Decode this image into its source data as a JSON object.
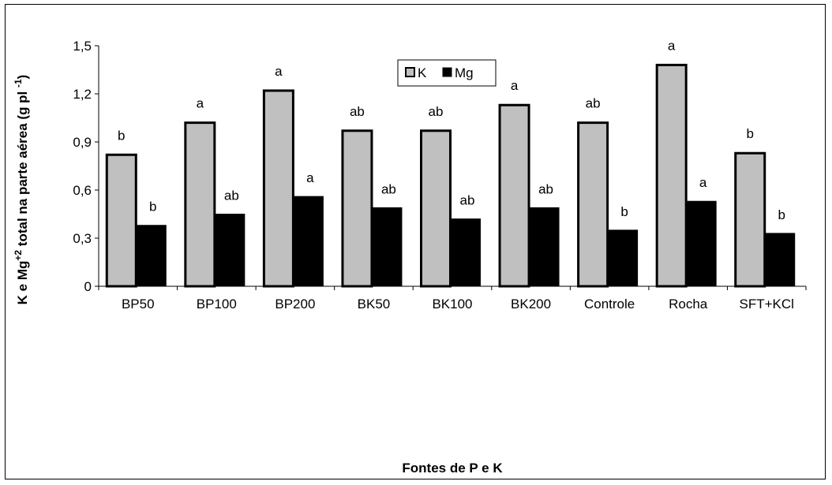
{
  "chart_data": {
    "type": "bar",
    "title": "",
    "xlabel": "Fontes de P e K",
    "ylabel_parts": [
      "K e Mg",
      "+2",
      " total na parte aérea (g pl ",
      "-1",
      ")"
    ],
    "ylim": [
      0,
      1.5
    ],
    "yticks": [
      0,
      0.3,
      0.6,
      0.9,
      1.2,
      1.5
    ],
    "ytick_labels": [
      "0",
      "0,3",
      "0,6",
      "0,9",
      "1,2",
      "1,5"
    ],
    "categories": [
      "BP50",
      "BP100",
      "BP200",
      "BK50",
      "BK100",
      "BK200",
      "Controle",
      "Rocha",
      "SFT+KCl"
    ],
    "series": [
      {
        "name": "K",
        "color": "#c0c0c0",
        "values": [
          0.82,
          1.02,
          1.22,
          0.97,
          0.97,
          1.13,
          1.02,
          1.38,
          0.83
        ],
        "labels": [
          "b",
          "a",
          "a",
          "ab",
          "ab",
          "a",
          "ab",
          "a",
          "b"
        ]
      },
      {
        "name": "Mg",
        "color": "#000000",
        "values": [
          0.38,
          0.45,
          0.56,
          0.49,
          0.42,
          0.49,
          0.35,
          0.53,
          0.33
        ],
        "labels": [
          "b",
          "ab",
          "a",
          "ab",
          "ab",
          "ab",
          "b",
          "a",
          "b"
        ]
      }
    ],
    "legend_position": "top-center",
    "grid": false
  }
}
